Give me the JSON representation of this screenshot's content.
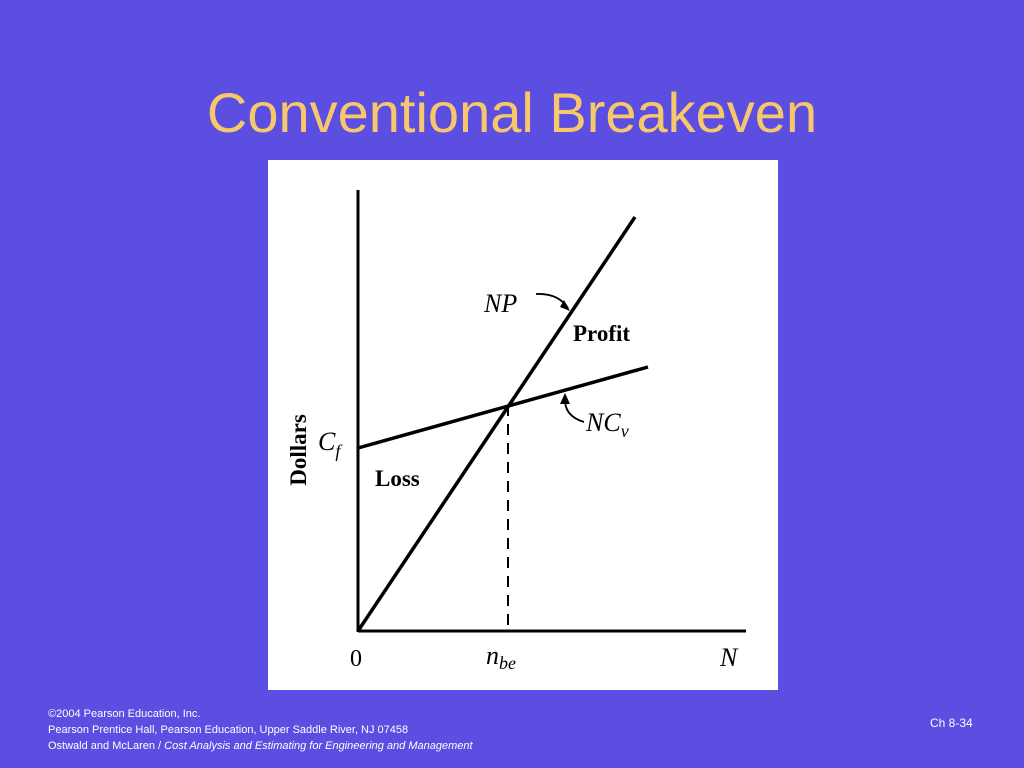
{
  "title": "Conventional Breakeven",
  "figure": {
    "y_axis_label": "Dollars",
    "origin_label": "0",
    "x_axis_end_label": "N",
    "fixed_cost_label": {
      "main": "C",
      "sub": "f"
    },
    "breakeven_label": {
      "main": "n",
      "sub": "be"
    },
    "revenue_line_label": "NP",
    "cost_line_label": {
      "main": "NC",
      "sub": "v"
    },
    "profit_label": "Profit",
    "loss_label": "Loss",
    "colors": {
      "ink": "#000000",
      "panel": "#ffffff"
    }
  },
  "footer": {
    "copyright_symbol": "©",
    "copyright": "2004 Pearson Education, Inc.",
    "publisher": "Pearson Prentice Hall, Pearson Education, Upper Saddle River, NJ 07458",
    "authors_prefix": "Ostwald and McLaren / ",
    "book_title": "Cost Analysis and Estimating for Engineering and Management"
  },
  "slide_number": "Ch 8-34",
  "colors": {
    "background": "#5b4ee0",
    "title": "#f7c86b",
    "footer_text": "#ffffff"
  }
}
